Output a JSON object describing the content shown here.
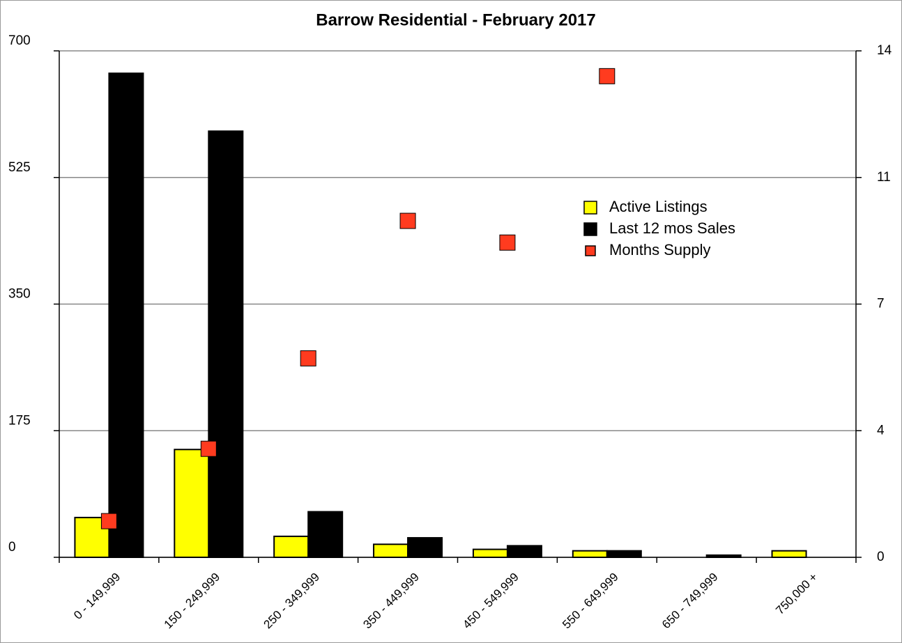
{
  "chart_data": {
    "type": "bar",
    "title": "Barrow Residential - February 2017",
    "categories": [
      "0 - 149,999",
      "150 - 249,999",
      "250 - 349,999",
      "350 - 449,999",
      "450 - 549,999",
      "550 - 649,999",
      "650 - 749,999",
      "750,000 +"
    ],
    "series": [
      {
        "name": "Active Listings",
        "type": "bar",
        "color": "#ffff00",
        "values": [
          55,
          149,
          29,
          18,
          11,
          9,
          0,
          9
        ]
      },
      {
        "name": "Last 12 mos Sales",
        "type": "bar",
        "color": "#000000",
        "values": [
          669,
          589,
          63,
          27,
          16,
          9,
          3,
          0
        ]
      },
      {
        "name": "Months Supply",
        "type": "scatter",
        "color": "#ff3b1f",
        "axis": "y2",
        "values": [
          1.0,
          3.0,
          5.5,
          9.3,
          8.7,
          13.3,
          null,
          null
        ]
      }
    ],
    "ylim": [
      0,
      700
    ],
    "yticks": [
      0,
      175,
      350,
      525,
      700
    ],
    "y2lim": [
      0,
      14
    ],
    "y2ticks": [
      0,
      {
        "value": 3.5,
        "label": "4"
      },
      7,
      {
        "value": 10.5,
        "label": "11"
      },
      14
    ],
    "grid": true,
    "legend": "right"
  }
}
